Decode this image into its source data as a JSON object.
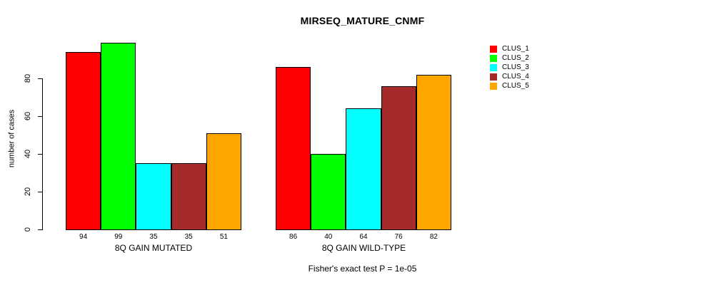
{
  "chart_data": {
    "type": "bar",
    "title": "MIRSEQ_MATURE_CNMF",
    "ylabel": "number of cases",
    "ylim": [
      0,
      100
    ],
    "yticks": [
      0,
      20,
      40,
      60,
      80
    ],
    "grid": false,
    "legend_position": "right",
    "bar_value_labels_shown": true,
    "categories": [
      "8Q GAIN MUTATED",
      "8Q GAIN WILD-TYPE"
    ],
    "series": [
      {
        "name": "CLUS_1",
        "color": "#FF0000",
        "values": [
          94,
          86
        ]
      },
      {
        "name": "CLUS_2",
        "color": "#00FF00",
        "values": [
          99,
          40
        ]
      },
      {
        "name": "CLUS_3",
        "color": "#00FFFF",
        "values": [
          35,
          64
        ]
      },
      {
        "name": "CLUS_4",
        "color": "#A52A2A",
        "values": [
          35,
          76
        ]
      },
      {
        "name": "CLUS_5",
        "color": "#FFA500",
        "values": [
          51,
          82
        ]
      }
    ],
    "footnote": "Fisher's exact test P = 1e-05"
  }
}
